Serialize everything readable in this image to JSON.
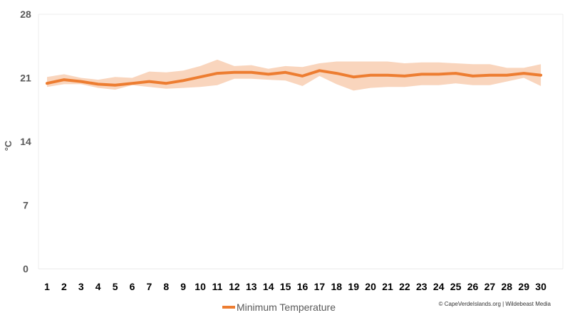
{
  "chart_data": {
    "type": "line",
    "title": "",
    "xlabel": "",
    "ylabel": "°C",
    "categories": [
      "1",
      "2",
      "3",
      "4",
      "5",
      "6",
      "7",
      "8",
      "9",
      "10",
      "11",
      "12",
      "13",
      "14",
      "15",
      "16",
      "17",
      "18",
      "19",
      "20",
      "21",
      "22",
      "23",
      "24",
      "25",
      "26",
      "27",
      "28",
      "29",
      "30"
    ],
    "y_ticks": [
      "0",
      "7",
      "14",
      "21",
      "28"
    ],
    "ylim": [
      0,
      28
    ],
    "grid": false,
    "legend_position": "bottom",
    "series": [
      {
        "name": "Minimum Temperature",
        "color": "#ED7D31",
        "values": [
          20.4,
          20.8,
          20.6,
          20.3,
          20.2,
          20.4,
          20.6,
          20.4,
          20.7,
          21.1,
          21.5,
          21.6,
          21.6,
          21.4,
          21.6,
          21.2,
          21.8,
          21.5,
          21.1,
          21.3,
          21.3,
          21.2,
          21.4,
          21.4,
          21.5,
          21.2,
          21.3,
          21.3,
          21.5,
          21.3
        ],
        "band_low": [
          20.0,
          20.3,
          20.3,
          19.9,
          19.7,
          20.2,
          20.0,
          19.8,
          19.9,
          20.0,
          20.2,
          20.9,
          20.9,
          20.8,
          20.7,
          20.1,
          21.2,
          20.3,
          19.6,
          19.9,
          20.0,
          20.0,
          20.2,
          20.2,
          20.4,
          20.2,
          20.2,
          20.6,
          21.0,
          20.1
        ],
        "band_high": [
          21.1,
          21.4,
          21.0,
          20.8,
          21.1,
          21.0,
          21.7,
          21.6,
          21.8,
          22.3,
          23.0,
          22.3,
          22.4,
          22.0,
          22.3,
          22.2,
          22.6,
          22.8,
          22.8,
          22.8,
          22.8,
          22.6,
          22.7,
          22.7,
          22.6,
          22.5,
          22.5,
          22.1,
          22.1,
          22.5
        ]
      }
    ],
    "band_color": "#F8CBAD"
  },
  "legend": {
    "label": "Minimum Temperature"
  },
  "credit": "© CapeVerdeIslands.org | Wildebeast Media"
}
